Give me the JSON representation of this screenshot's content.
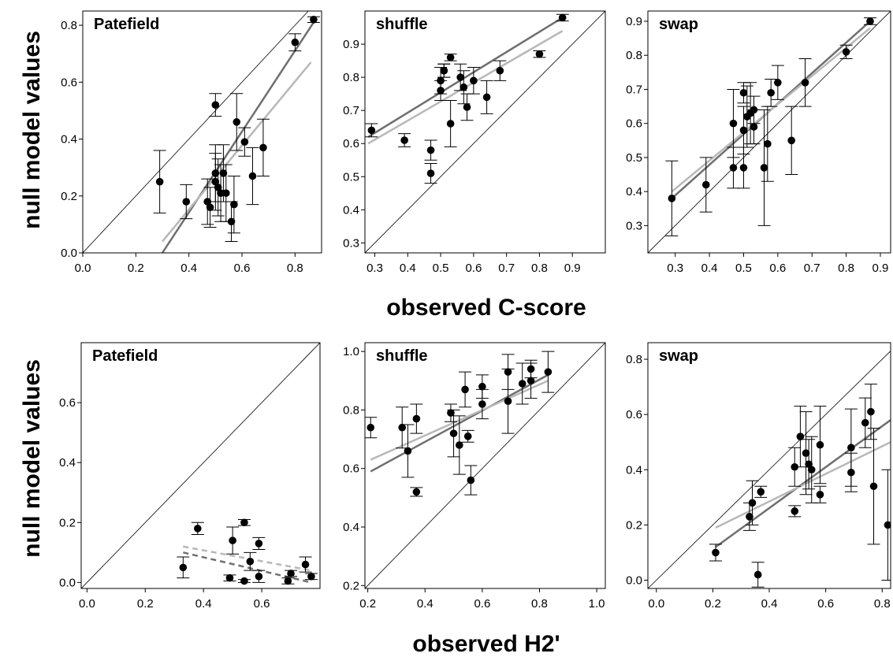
{
  "figure": {
    "ylabel": "null model values",
    "xlabel_top": "observed C-score",
    "xlabel_bottom": "observed H2'"
  },
  "colors": {
    "points": "#000000",
    "dark_line": "#6f6f6f",
    "light_line": "#b8b8b8",
    "diagonal": "#000000"
  },
  "chart_data": [
    {
      "type": "scatter",
      "title": "Patefield",
      "xlim": [
        0.0,
        0.9
      ],
      "ylim": [
        0.0,
        0.85
      ],
      "xticks": [
        "0.0",
        "0.2",
        "0.4",
        "0.6",
        "0.8"
      ],
      "yticks": [
        "0.0",
        "0.2",
        "0.4",
        "0.6",
        "0.8"
      ],
      "points": [
        {
          "x": 0.29,
          "y": 0.25,
          "err": 0.11
        },
        {
          "x": 0.39,
          "y": 0.18,
          "err": 0.06
        },
        {
          "x": 0.47,
          "y": 0.18,
          "err": 0.08
        },
        {
          "x": 0.48,
          "y": 0.16,
          "err": 0.07
        },
        {
          "x": 0.5,
          "y": 0.52,
          "err": 0.04
        },
        {
          "x": 0.5,
          "y": 0.28,
          "err": 0.1
        },
        {
          "x": 0.5,
          "y": 0.25,
          "err": 0.1
        },
        {
          "x": 0.51,
          "y": 0.23,
          "err": 0.1
        },
        {
          "x": 0.52,
          "y": 0.21,
          "err": 0.1
        },
        {
          "x": 0.53,
          "y": 0.28,
          "err": 0.1
        },
        {
          "x": 0.54,
          "y": 0.21,
          "err": 0.1
        },
        {
          "x": 0.56,
          "y": 0.11,
          "err": 0.07
        },
        {
          "x": 0.57,
          "y": 0.17,
          "err": 0.1
        },
        {
          "x": 0.58,
          "y": 0.46,
          "err": 0.1
        },
        {
          "x": 0.61,
          "y": 0.39,
          "err": 0.05
        },
        {
          "x": 0.64,
          "y": 0.27,
          "err": 0.1
        },
        {
          "x": 0.68,
          "y": 0.37,
          "err": 0.1
        },
        {
          "x": 0.8,
          "y": 0.74,
          "err": 0.03
        },
        {
          "x": 0.87,
          "y": 0.82,
          "err": 0.01
        }
      ],
      "fit_lines": [
        {
          "style": "dark",
          "dashed": false,
          "x0": 0.3,
          "y0": 0.0,
          "x1": 0.87,
          "y1": 0.81
        },
        {
          "style": "light",
          "dashed": false,
          "x0": 0.3,
          "y0": 0.04,
          "x1": 0.86,
          "y1": 0.67
        }
      ]
    },
    {
      "type": "scatter",
      "title": "shuffle",
      "xlim": [
        0.27,
        1.0
      ],
      "ylim": [
        0.27,
        1.0
      ],
      "xticks": [
        "0.3",
        "0.4",
        "0.5",
        "0.6",
        "0.7",
        "0.8",
        "0.9"
      ],
      "yticks": [
        "0.3",
        "0.4",
        "0.5",
        "0.6",
        "0.7",
        "0.8",
        "0.9"
      ],
      "points": [
        {
          "x": 0.29,
          "y": 0.64,
          "err": 0.02
        },
        {
          "x": 0.39,
          "y": 0.61,
          "err": 0.02
        },
        {
          "x": 0.47,
          "y": 0.58,
          "err": 0.03
        },
        {
          "x": 0.47,
          "y": 0.51,
          "err": 0.03
        },
        {
          "x": 0.5,
          "y": 0.79,
          "err": 0.04
        },
        {
          "x": 0.5,
          "y": 0.76,
          "err": 0.03
        },
        {
          "x": 0.51,
          "y": 0.82,
          "err": 0.02
        },
        {
          "x": 0.51,
          "y": 0.82,
          "err": 0.02
        },
        {
          "x": 0.53,
          "y": 0.86,
          "err": 0.01
        },
        {
          "x": 0.53,
          "y": 0.66,
          "err": 0.07
        },
        {
          "x": 0.56,
          "y": 0.8,
          "err": 0.04
        },
        {
          "x": 0.57,
          "y": 0.77,
          "err": 0.05
        },
        {
          "x": 0.58,
          "y": 0.71,
          "err": 0.04
        },
        {
          "x": 0.6,
          "y": 0.79,
          "err": 0.04
        },
        {
          "x": 0.64,
          "y": 0.74,
          "err": 0.05
        },
        {
          "x": 0.68,
          "y": 0.82,
          "err": 0.03
        },
        {
          "x": 0.8,
          "y": 0.87,
          "err": 0.01
        },
        {
          "x": 0.87,
          "y": 0.98,
          "err": 0.01
        }
      ],
      "fit_lines": [
        {
          "style": "dark",
          "dashed": false,
          "x0": 0.28,
          "y0": 0.62,
          "x1": 0.87,
          "y1": 0.98
        },
        {
          "style": "light",
          "dashed": false,
          "x0": 0.28,
          "y0": 0.6,
          "x1": 0.87,
          "y1": 0.94
        }
      ]
    },
    {
      "type": "scatter",
      "title": "swap",
      "xlim": [
        0.22,
        0.93
      ],
      "ylim": [
        0.22,
        0.93
      ],
      "xticks": [
        "0.3",
        "0.4",
        "0.5",
        "0.6",
        "0.7",
        "0.8",
        "0.9"
      ],
      "yticks": [
        "0.3",
        "0.4",
        "0.5",
        "0.6",
        "0.7",
        "0.8",
        "0.9"
      ],
      "points": [
        {
          "x": 0.29,
          "y": 0.38,
          "err": 0.11
        },
        {
          "x": 0.39,
          "y": 0.42,
          "err": 0.08
        },
        {
          "x": 0.47,
          "y": 0.6,
          "err": 0.1
        },
        {
          "x": 0.47,
          "y": 0.47,
          "err": 0.06
        },
        {
          "x": 0.5,
          "y": 0.58,
          "err": 0.07
        },
        {
          "x": 0.5,
          "y": 0.47,
          "err": 0.06
        },
        {
          "x": 0.5,
          "y": 0.69,
          "err": 0.03
        },
        {
          "x": 0.51,
          "y": 0.62,
          "err": 0.09
        },
        {
          "x": 0.52,
          "y": 0.63,
          "err": 0.09
        },
        {
          "x": 0.53,
          "y": 0.59,
          "err": 0.05
        },
        {
          "x": 0.53,
          "y": 0.64,
          "err": 0.04
        },
        {
          "x": 0.56,
          "y": 0.47,
          "err": 0.17
        },
        {
          "x": 0.57,
          "y": 0.54,
          "err": 0.11
        },
        {
          "x": 0.58,
          "y": 0.69,
          "err": 0.04
        },
        {
          "x": 0.6,
          "y": 0.72,
          "err": 0.05
        },
        {
          "x": 0.64,
          "y": 0.55,
          "err": 0.1
        },
        {
          "x": 0.68,
          "y": 0.72,
          "err": 0.07
        },
        {
          "x": 0.8,
          "y": 0.81,
          "err": 0.02
        },
        {
          "x": 0.87,
          "y": 0.9,
          "err": 0.01
        }
      ],
      "fit_lines": [
        {
          "style": "dark",
          "dashed": false,
          "x0": 0.29,
          "y0": 0.38,
          "x1": 0.87,
          "y1": 0.9
        },
        {
          "style": "light",
          "dashed": false,
          "x0": 0.29,
          "y0": 0.4,
          "x1": 0.87,
          "y1": 0.88
        }
      ]
    },
    {
      "type": "scatter",
      "title": "Patefield",
      "xlim": [
        -0.02,
        0.8
      ],
      "ylim": [
        -0.02,
        0.8
      ],
      "xticks": [
        "0.0",
        "0.2",
        "0.4",
        "0.6"
      ],
      "yticks": [
        "0.0",
        "0.2",
        "0.4",
        "0.6"
      ],
      "points": [
        {
          "x": 0.33,
          "y": 0.05,
          "err": 0.035
        },
        {
          "x": 0.38,
          "y": 0.18,
          "err": 0.02
        },
        {
          "x": 0.49,
          "y": 0.015,
          "err": 0.01
        },
        {
          "x": 0.5,
          "y": 0.14,
          "err": 0.045
        },
        {
          "x": 0.54,
          "y": 0.2,
          "err": 0.01
        },
        {
          "x": 0.54,
          "y": 0.005,
          "err": 0.005
        },
        {
          "x": 0.56,
          "y": 0.07,
          "err": 0.03
        },
        {
          "x": 0.59,
          "y": 0.13,
          "err": 0.02
        },
        {
          "x": 0.59,
          "y": 0.02,
          "err": 0.02
        },
        {
          "x": 0.69,
          "y": 0.005,
          "err": 0.01
        },
        {
          "x": 0.7,
          "y": 0.03,
          "err": 0.01
        },
        {
          "x": 0.75,
          "y": 0.06,
          "err": 0.025
        },
        {
          "x": 0.77,
          "y": 0.02,
          "err": 0.01
        }
      ],
      "fit_lines": [
        {
          "style": "dark",
          "dashed": true,
          "x0": 0.33,
          "y0": 0.1,
          "x1": 0.77,
          "y1": 0.0
        },
        {
          "style": "light",
          "dashed": true,
          "x0": 0.33,
          "y0": 0.12,
          "x1": 0.77,
          "y1": 0.04
        }
      ]
    },
    {
      "type": "scatter",
      "title": "shuffle",
      "xlim": [
        0.19,
        1.03
      ],
      "ylim": [
        0.19,
        1.03
      ],
      "xticks": [
        "0.2",
        "0.4",
        "0.6",
        "0.8",
        "1.0"
      ],
      "yticks": [
        "0.2",
        "0.4",
        "0.6",
        "0.8",
        "1.0"
      ],
      "points": [
        {
          "x": 0.21,
          "y": 0.74,
          "err": 0.035
        },
        {
          "x": 0.32,
          "y": 0.74,
          "err": 0.07
        },
        {
          "x": 0.34,
          "y": 0.66,
          "err": 0.09
        },
        {
          "x": 0.37,
          "y": 0.77,
          "err": 0.05
        },
        {
          "x": 0.37,
          "y": 0.52,
          "err": 0.015
        },
        {
          "x": 0.49,
          "y": 0.79,
          "err": 0.03
        },
        {
          "x": 0.5,
          "y": 0.72,
          "err": 0.08
        },
        {
          "x": 0.52,
          "y": 0.68,
          "err": 0.1
        },
        {
          "x": 0.54,
          "y": 0.87,
          "err": 0.06
        },
        {
          "x": 0.55,
          "y": 0.71,
          "err": 0.02
        },
        {
          "x": 0.56,
          "y": 0.56,
          "err": 0.05
        },
        {
          "x": 0.6,
          "y": 0.82,
          "err": 0.05
        },
        {
          "x": 0.6,
          "y": 0.88,
          "err": 0.04
        },
        {
          "x": 0.69,
          "y": 0.93,
          "err": 0.06
        },
        {
          "x": 0.69,
          "y": 0.83,
          "err": 0.11
        },
        {
          "x": 0.74,
          "y": 0.89,
          "err": 0.07
        },
        {
          "x": 0.77,
          "y": 0.9,
          "err": 0.06
        },
        {
          "x": 0.77,
          "y": 0.94,
          "err": 0.03
        },
        {
          "x": 0.83,
          "y": 0.93,
          "err": 0.07
        }
      ],
      "fit_lines": [
        {
          "style": "dark",
          "dashed": false,
          "x0": 0.21,
          "y0": 0.59,
          "x1": 0.83,
          "y1": 0.92
        },
        {
          "style": "light",
          "dashed": false,
          "x0": 0.21,
          "y0": 0.63,
          "x1": 0.83,
          "y1": 0.9
        }
      ]
    },
    {
      "type": "scatter",
      "title": "swap",
      "xlim": [
        -0.03,
        0.83
      ],
      "ylim": [
        -0.03,
        0.86
      ],
      "xticks": [
        "0.0",
        "0.2",
        "0.4",
        "0.6",
        "0.8"
      ],
      "yticks": [
        "0.0",
        "0.2",
        "0.4",
        "0.6",
        "0.8"
      ],
      "points": [
        {
          "x": 0.21,
          "y": 0.1,
          "err": 0.03
        },
        {
          "x": 0.33,
          "y": 0.23,
          "err": 0.05
        },
        {
          "x": 0.34,
          "y": 0.28,
          "err": 0.08
        },
        {
          "x": 0.36,
          "y": 0.02,
          "err": 0.045
        },
        {
          "x": 0.37,
          "y": 0.32,
          "err": 0.02
        },
        {
          "x": 0.49,
          "y": 0.41,
          "err": 0.07
        },
        {
          "x": 0.49,
          "y": 0.25,
          "err": 0.02
        },
        {
          "x": 0.51,
          "y": 0.52,
          "err": 0.11
        },
        {
          "x": 0.53,
          "y": 0.46,
          "err": 0.15
        },
        {
          "x": 0.54,
          "y": 0.42,
          "err": 0.09
        },
        {
          "x": 0.55,
          "y": 0.4,
          "err": 0.12
        },
        {
          "x": 0.58,
          "y": 0.49,
          "err": 0.14
        },
        {
          "x": 0.58,
          "y": 0.31,
          "err": 0.03
        },
        {
          "x": 0.69,
          "y": 0.48,
          "err": 0.14
        },
        {
          "x": 0.69,
          "y": 0.39,
          "err": 0.07
        },
        {
          "x": 0.74,
          "y": 0.57,
          "err": 0.09
        },
        {
          "x": 0.76,
          "y": 0.61,
          "err": 0.1
        },
        {
          "x": 0.77,
          "y": 0.34,
          "err": 0.21
        },
        {
          "x": 0.82,
          "y": 0.2,
          "err": 0.2
        }
      ],
      "fit_lines": [
        {
          "style": "dark",
          "dashed": false,
          "x0": 0.21,
          "y0": 0.12,
          "x1": 0.83,
          "y1": 0.58
        },
        {
          "style": "light",
          "dashed": false,
          "x0": 0.21,
          "y0": 0.19,
          "x1": 0.83,
          "y1": 0.5
        }
      ]
    }
  ]
}
